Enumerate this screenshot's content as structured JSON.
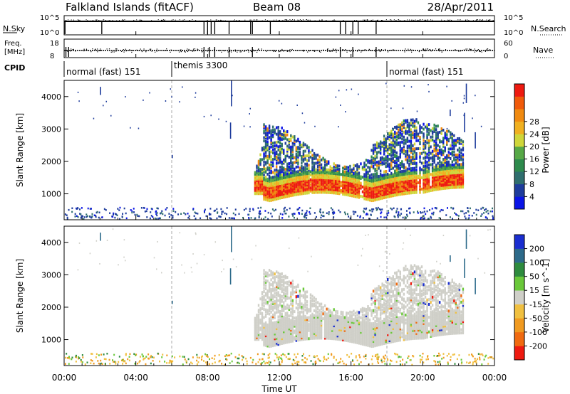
{
  "header": {
    "title": "Falkland Islands (fitACF)",
    "beam": "Beam 08",
    "date": "28/Apr/2011"
  },
  "noise_panel": {
    "left_label": "N.Sky",
    "right_label": "N.Search",
    "left_ticks": [
      "10^5",
      "10^0"
    ],
    "right_ticks": [
      "10^5",
      "10^0"
    ]
  },
  "freq_panel": {
    "left_label_line1": "Freq.",
    "left_label_line2": "[MHz]",
    "right_label": "Nave",
    "left_ticks": [
      "18",
      "8"
    ],
    "right_ticks": [
      "60",
      "0"
    ]
  },
  "cpid_panel": {
    "label": "CPID",
    "segments": [
      {
        "name": "normal (fast) 151",
        "start_h": 0,
        "end_h": 6
      },
      {
        "name": "themis 3300",
        "start_h": 6,
        "end_h": 18
      },
      {
        "name": "normal (fast) 151",
        "start_h": 18,
        "end_h": 24
      }
    ]
  },
  "chart_data": [
    {
      "type": "heatmap",
      "parameter": "power",
      "ylabel": "Slant Range [km]",
      "yticks": [
        1000,
        2000,
        3000,
        4000
      ],
      "ylim": [
        200,
        4500
      ],
      "xlim": [
        0,
        24
      ],
      "colorbar_label": "Power [dB]",
      "colorbar_ticks": [
        "4",
        "8",
        "12",
        "16",
        "20",
        "24",
        "28"
      ],
      "colors": [
        "#0a14e6",
        "#1e3c9c",
        "#2f6e6e",
        "#2e8b4d",
        "#56a846",
        "#cfd63a",
        "#f0b020",
        "#f08a10",
        "#f05a0a",
        "#ee1a10"
      ],
      "regions": [
        {
          "label": "F-region backscatter",
          "x_range": [
            10.5,
            22.5
          ],
          "range_km": [
            800,
            3300
          ]
        },
        {
          "label": "near-range ground scatter",
          "x_range": [
            0,
            24
          ],
          "range_km": [
            200,
            600
          ]
        }
      ]
    },
    {
      "type": "heatmap",
      "parameter": "velocity",
      "ylabel": "Slant Range [km]",
      "yticks": [
        1000,
        2000,
        3000,
        4000
      ],
      "ylim": [
        200,
        4500
      ],
      "xlim": [
        0,
        24
      ],
      "xlabel": "Time UT",
      "xticks": [
        "00:00",
        "04:00",
        "08:00",
        "12:00",
        "16:00",
        "20:00",
        "00:00"
      ],
      "colorbar_label": "Velocity [m s^-1]",
      "colorbar_ticks": [
        "200",
        "100",
        "50",
        "15",
        "-15",
        "-50",
        "-100",
        "-200"
      ],
      "colors": [
        "#1a2ed0",
        "#2d6a8a",
        "#2e8b3e",
        "#6ac83a",
        "#cfcfc8",
        "#f0c040",
        "#f09a20",
        "#f06a10",
        "#ee1a10"
      ],
      "regions": [
        {
          "label": "ground scatter (grey)",
          "x_range": [
            10.5,
            22.5
          ],
          "range_km": [
            800,
            3300
          ]
        }
      ]
    }
  ]
}
